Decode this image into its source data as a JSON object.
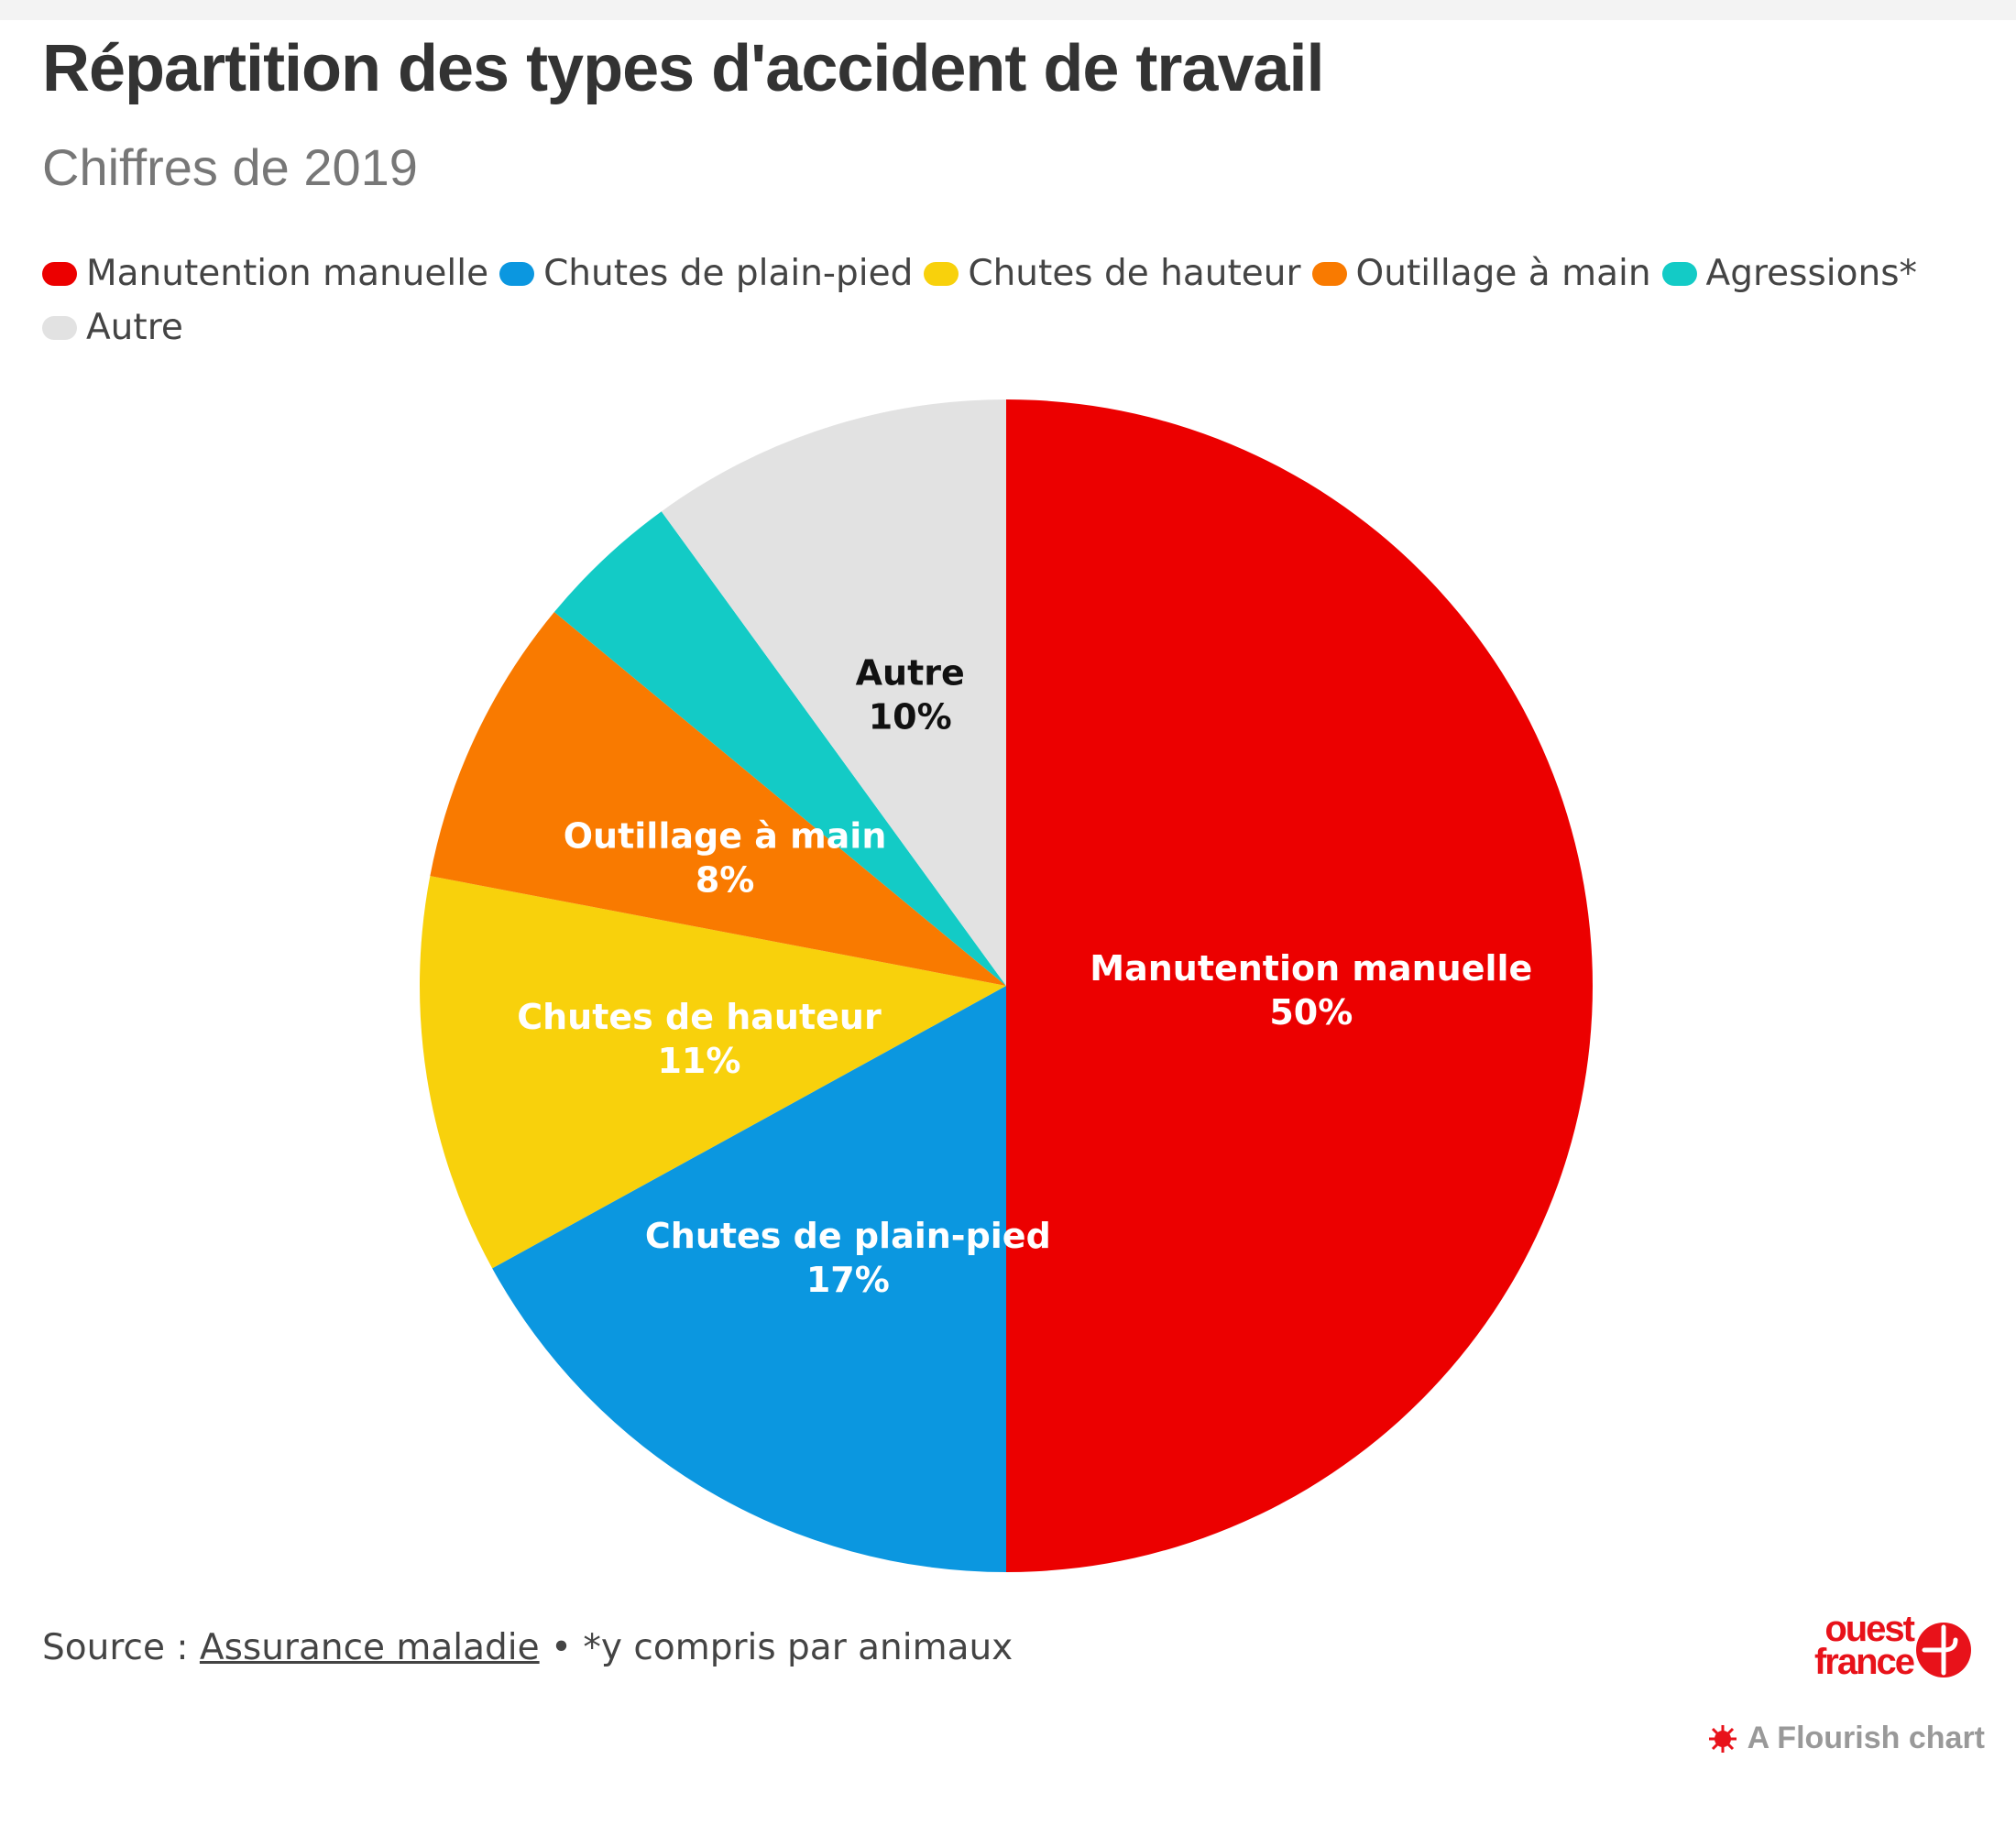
{
  "title": "Répartition des types d'accident de travail",
  "subtitle": "Chiffres de 2019",
  "legend": [
    {
      "label": "Manutention manuelle",
      "color": "#ec0000"
    },
    {
      "label": "Chutes de plain-pied",
      "color": "#0b97e0"
    },
    {
      "label": "Chutes de hauteur",
      "color": "#f8d10c"
    },
    {
      "label": "Outillage à main",
      "color": "#f97a00"
    },
    {
      "label": "Agressions*",
      "color": "#13cbc6"
    },
    {
      "label": "Autre",
      "color": "#e2e2e2"
    }
  ],
  "chart_data": {
    "type": "pie",
    "title": "Répartition des types d'accident de travail",
    "subtitle": "Chiffres de 2019",
    "start_angle_deg": 0,
    "direction": "clockwise",
    "legend_position": "top-left",
    "slices": [
      {
        "label": "Manutention manuelle",
        "value": 50,
        "value_label": "50%",
        "color": "#ec0000",
        "show_label": true,
        "label_color": "#ffffff"
      },
      {
        "label": "Chutes de plain-pied",
        "value": 17,
        "value_label": "17%",
        "color": "#0b97e0",
        "show_label": true,
        "label_color": "#ffffff"
      },
      {
        "label": "Chutes de hauteur",
        "value": 11,
        "value_label": "11%",
        "color": "#f8d10c",
        "show_label": true,
        "label_color": "#ffffff"
      },
      {
        "label": "Outillage à main",
        "value": 8,
        "value_label": "8%",
        "color": "#f97a00",
        "show_label": true,
        "label_color": "#ffffff"
      },
      {
        "label": "Agressions*",
        "value": 4,
        "value_label": "4%",
        "color": "#13cbc6",
        "show_label": false,
        "label_color": "#ffffff"
      },
      {
        "label": "Autre",
        "value": 10,
        "value_label": "10%",
        "color": "#e2e2e2",
        "show_label": true,
        "label_color": "#111111"
      }
    ]
  },
  "footer": {
    "source_prefix": "Source : ",
    "source_link": "Assurance maladie",
    "note": " • *y compris par animaux"
  },
  "logo": {
    "line1": "ouest",
    "line2": "france",
    "color": "#e8121a"
  },
  "credit": "A Flourish chart"
}
